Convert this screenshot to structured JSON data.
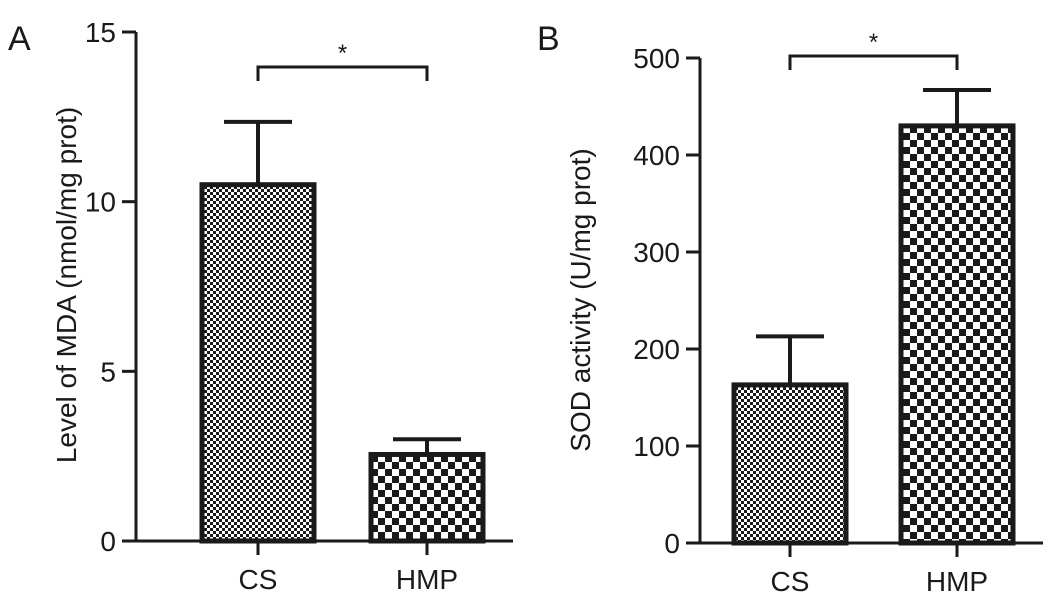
{
  "chart_data": [
    {
      "type": "bar",
      "panel_label": "A",
      "categories": [
        "CS",
        "HMP"
      ],
      "values": [
        10.5,
        2.55
      ],
      "errors": [
        1.85,
        0.45
      ],
      "yticks": [
        0,
        5,
        10,
        15
      ],
      "ylim": [
        0,
        15
      ],
      "ylabel": "Level of MDA (nmol/mg prot)",
      "xlabel": "",
      "title": "",
      "significance": {
        "between": [
          "CS",
          "HMP"
        ],
        "label": "*"
      },
      "patterns": [
        "fine-checker",
        "coarse-checker"
      ],
      "colors": {
        "bar_dark": "#1a1a1a",
        "bar_light": "#ffffff"
      }
    },
    {
      "type": "bar",
      "panel_label": "B",
      "categories": [
        "CS",
        "HMP"
      ],
      "values": [
        163,
        430
      ],
      "errors": [
        50,
        37
      ],
      "yticks": [
        0,
        100,
        200,
        300,
        400,
        500
      ],
      "ylim": [
        0,
        500
      ],
      "ylabel": "SOD activity (U/mg prot)",
      "xlabel": "",
      "title": "",
      "significance": {
        "between": [
          "CS",
          "HMP"
        ],
        "label": "*"
      },
      "patterns": [
        "fine-checker",
        "coarse-checker"
      ],
      "colors": {
        "bar_dark": "#1a1a1a",
        "bar_light": "#ffffff"
      }
    }
  ]
}
